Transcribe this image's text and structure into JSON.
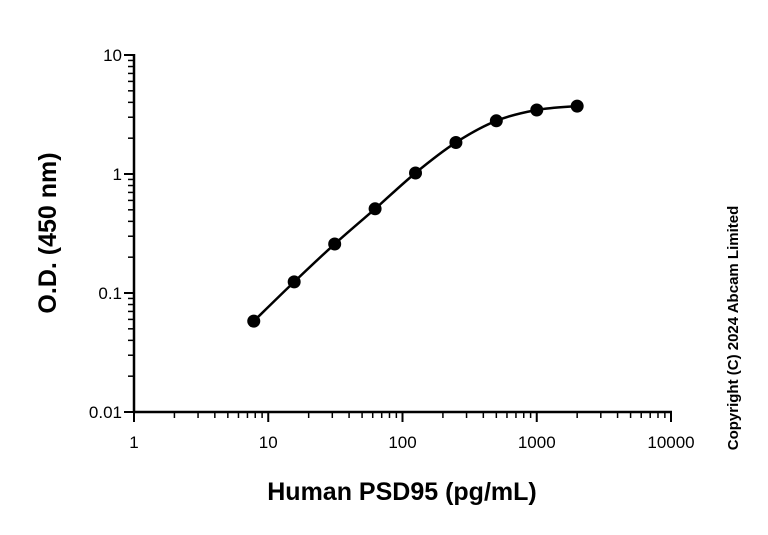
{
  "chart_data": {
    "type": "scatter",
    "xlabel": "Human PSD95 (pg/mL)",
    "ylabel": "O.D. (450 nm)",
    "xscale": "log",
    "yscale": "log",
    "xlim": [
      1,
      10000
    ],
    "ylim": [
      0.01,
      10
    ],
    "x_ticks": [
      {
        "value": 1,
        "label": "1"
      },
      {
        "value": 10,
        "label": "10"
      },
      {
        "value": 100,
        "label": "100"
      },
      {
        "value": 1000,
        "label": "1000"
      },
      {
        "value": 10000,
        "label": "10000"
      }
    ],
    "y_ticks": [
      {
        "value": 0.01,
        "label": "0.01"
      },
      {
        "value": 0.1,
        "label": "0.1"
      },
      {
        "value": 1,
        "label": "1"
      },
      {
        "value": 10,
        "label": "10"
      }
    ],
    "grid": false,
    "fit_curve": true,
    "series": [
      {
        "x": [
          7.8,
          15.6,
          31.25,
          62.5,
          125,
          250,
          500,
          1000,
          2000
        ],
        "y": [
          0.058,
          0.124,
          0.258,
          0.51,
          1.02,
          1.84,
          2.8,
          3.45,
          3.72
        ]
      }
    ],
    "colors": {
      "marker": "#000000",
      "line": "#000000"
    },
    "copyright": "Copyright (C) 2024 Abcam Limited"
  }
}
